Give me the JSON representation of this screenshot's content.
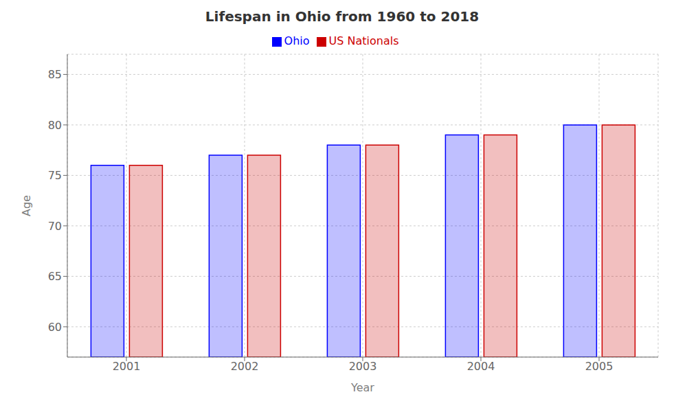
{
  "chart_data": {
    "type": "bar",
    "title": "Lifespan in Ohio from 1960 to 2018",
    "xlabel": "Year",
    "ylabel": "Age",
    "categories": [
      "2001",
      "2002",
      "2003",
      "2004",
      "2005"
    ],
    "series": [
      {
        "name": "Ohio",
        "color": "#0000ff",
        "values": [
          76,
          77,
          78,
          79,
          80
        ]
      },
      {
        "name": "US Nationals",
        "color": "#cc0000",
        "values": [
          76,
          77,
          78,
          79,
          80
        ]
      }
    ],
    "ylim": [
      57,
      87
    ],
    "yticks": [
      60,
      65,
      70,
      75,
      80,
      85
    ],
    "grid": true,
    "legend": "top"
  }
}
